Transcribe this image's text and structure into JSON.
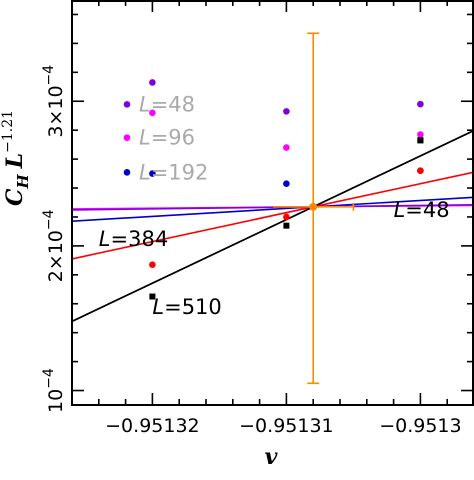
{
  "chart_data": {
    "type": "line",
    "xlabel": "v",
    "ylabel": "C_H L^-1.21",
    "ylabel_parts": {
      "base": "C",
      "sub": "H",
      "L": "L",
      "exp": "−1.21"
    },
    "xlim": [
      -0.951326,
      -0.951296
    ],
    "ylim": [
      9e-05,
      0.00037
    ],
    "x_ticks": [
      {
        "value": -0.95132,
        "label": "−0.95132"
      },
      {
        "value": -0.95131,
        "label": "−0.95131"
      },
      {
        "value": -0.9513,
        "label": "−0.9513"
      }
    ],
    "y_ticks": [
      {
        "value": 0.0001,
        "mant": "10",
        "exp": "−4"
      },
      {
        "value": 0.0002,
        "mant": "2×10",
        "exp": "−4"
      },
      {
        "value": 0.0003,
        "mant": "3×10",
        "exp": "−4"
      }
    ],
    "series": [
      {
        "name": "L=48",
        "color": "#000000",
        "slope": 4.4,
        "points": [
          {
            "x": -0.9513,
            "y": 0.000273
          }
        ]
      },
      {
        "name": "L=96",
        "color": "#ff00ff",
        "slope": 0.08,
        "points": [
          {
            "x": -0.95132,
            "y": 0.000292
          },
          {
            "x": -0.95131,
            "y": 0.000268
          },
          {
            "x": -0.9513,
            "y": 0.000277
          }
        ]
      },
      {
        "name": "L=192",
        "color": "#0000cc",
        "slope": 0.55,
        "points": [
          {
            "x": -0.95132,
            "y": 0.00025
          },
          {
            "x": -0.95131,
            "y": 0.000243
          },
          {
            "x": -0.9513,
            "y": 0.000252
          }
        ]
      },
      {
        "name": "L=384",
        "color": "#ff0000",
        "slope": 2.0,
        "points": [
          {
            "x": -0.95132,
            "y": 0.000187
          },
          {
            "x": -0.95131,
            "y": 0.00022
          },
          {
            "x": -0.9513,
            "y": 0.000252
          }
        ]
      },
      {
        "name": "L=510",
        "color": "#000000",
        "slope": 4.4,
        "points": [
          {
            "x": -0.95132,
            "y": 0.000165
          },
          {
            "x": -0.95131,
            "y": 0.000214
          },
          {
            "x": -0.9513,
            "y": 0.000273
          }
        ]
      },
      {
        "name": "L=48",
        "color": "#8000e0",
        "slope": 0.12,
        "points": [
          {
            "x": -0.95132,
            "y": 0.000313
          },
          {
            "x": -0.95131,
            "y": 0.000293
          },
          {
            "x": -0.9513,
            "y": 0.000298
          }
        ]
      }
    ],
    "crossing": {
      "x": -0.951308,
      "y": 0.000227,
      "color": "#ff8800",
      "err_low": 0.000105,
      "err_high": 0.000347,
      "xerr": 1.5e-06
    },
    "annotations": [
      {
        "text": "L=48",
        "color": "#aaaaaa",
        "marker_color": "#8000e0",
        "x": -0.951321,
        "y": 0.000293
      },
      {
        "text": "L=96",
        "color": "#aaaaaa",
        "marker_color": "#ff00ff",
        "x": -0.951321,
        "y": 0.00027
      },
      {
        "text": "L=192",
        "color": "#aaaaaa",
        "marker_color": "#0000cc",
        "x": -0.951321,
        "y": 0.000246
      },
      {
        "text": "L=384",
        "color": "#000000",
        "x": -0.951324,
        "y": 0.0002
      },
      {
        "text": "L=510",
        "color": "#000000",
        "x": -0.95132,
        "y": 0.000153
      },
      {
        "text": "L=48",
        "color": "#000000",
        "x": -0.951302,
        "y": 0.00022
      }
    ]
  }
}
